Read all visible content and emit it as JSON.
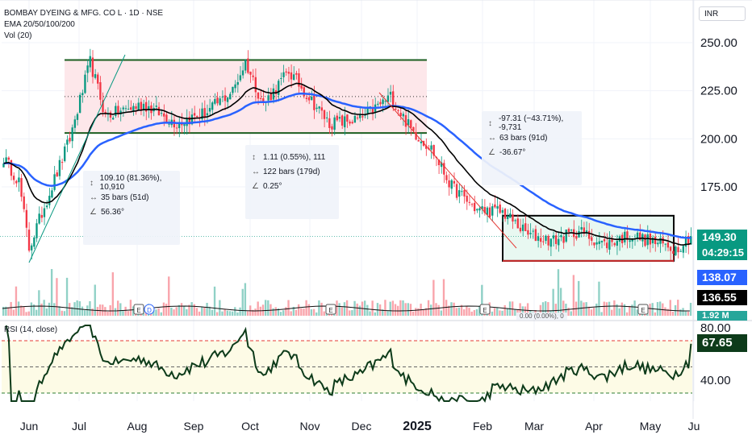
{
  "header": {
    "symbol_line": "BOMBAY DYEING & MFG. CO L · 1D · NSE",
    "ema_line": "EMA 20/50/100/200",
    "vol_line": "Vol (20)",
    "currency": "INR"
  },
  "price_axis": {
    "ticks": [
      "250.00",
      "225.00",
      "200.00",
      "175.00"
    ]
  },
  "rsi_axis": {
    "ticks": [
      "80.00",
      "40.00"
    ],
    "title": "RSI (14, close)"
  },
  "time_axis": {
    "labels": [
      "Jun",
      "Jul",
      "Aug",
      "Sep",
      "Oct",
      "Nov",
      "Dec",
      "2025",
      "Feb",
      "Mar",
      "Apr",
      "May",
      "Ju"
    ]
  },
  "price_labels": {
    "last_price": "149.30",
    "countdown": "04:29:15",
    "ema_blue": "138.07",
    "ema_black": "136.55",
    "volume": "1.92 M",
    "rsi": "67.65"
  },
  "measure_boxes": [
    {
      "delta": "109.10 (81.36%), 10,910",
      "bars": "35 bars (51d)",
      "angle": "56.36°"
    },
    {
      "delta": "1.11 (0.55%), 111",
      "bars": "122 bars (179d)",
      "angle": "0.25°"
    },
    {
      "delta": "-97.31 (−43.71%), -9,731",
      "bars": "63 bars (91d)",
      "angle": "-36.67°"
    }
  ],
  "hidden_measure_text": "0.00 (0.00%), 0",
  "events": [
    "E",
    "D",
    "E",
    "E",
    "E"
  ],
  "colors": {
    "up": "#089981",
    "down": "#f23645",
    "ema_blue": "#2962ff",
    "ema_black": "#000000",
    "rsi": "#0d3b1a",
    "level_green": "#1b5e20",
    "level_red": "#b71c1c",
    "range_fill": "#fde7ea",
    "rsi_bg": "#fdfbe6",
    "breakout_fill": "#e8f8f1"
  },
  "chart_data": {
    "type": "candlestick",
    "symbol": "BOMBAY DYEING & MFG. CO L",
    "interval": "1D",
    "exchange": "NSE",
    "price_range": [
      135,
      255
    ],
    "levels": {
      "range_top": 241,
      "range_mid": 222,
      "range_bottom": 203,
      "box_top": 160,
      "box_bottom": 136.5
    },
    "anchors": [
      [
        0,
        190
      ],
      [
        6,
        178
      ],
      [
        10,
        143
      ],
      [
        16,
        165
      ],
      [
        26,
        200
      ],
      [
        34,
        240
      ],
      [
        40,
        212
      ],
      [
        55,
        218
      ],
      [
        68,
        208
      ],
      [
        80,
        214
      ],
      [
        90,
        225
      ],
      [
        95,
        240
      ],
      [
        102,
        218
      ],
      [
        112,
        235
      ],
      [
        118,
        225
      ],
      [
        128,
        208
      ],
      [
        140,
        210
      ],
      [
        152,
        222
      ],
      [
        160,
        205
      ],
      [
        168,
        195
      ],
      [
        176,
        175
      ],
      [
        186,
        163
      ],
      [
        196,
        162
      ],
      [
        206,
        150
      ],
      [
        216,
        147
      ],
      [
        226,
        152
      ],
      [
        236,
        145
      ],
      [
        246,
        150
      ],
      [
        256,
        146
      ],
      [
        264,
        143
      ],
      [
        270,
        149.3
      ]
    ],
    "last": 149.3,
    "ema_blue_last": 138.07,
    "ema_black_last": 136.55,
    "rsi_last": 67.65,
    "rsi_levels": [
      70,
      50,
      30
    ],
    "volume_last": "1.92 M"
  }
}
